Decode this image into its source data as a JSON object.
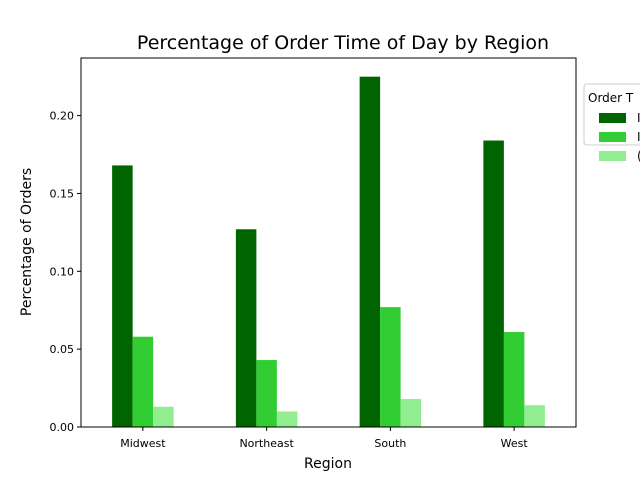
{
  "chart_data": {
    "type": "bar",
    "title": "Percentage of Order Time of Day by Region",
    "xlabel": "Region",
    "ylabel": "Percentage of Orders",
    "categories": [
      "Midwest",
      "Northeast",
      "South",
      "West"
    ],
    "ylim": [
      0,
      0.237
    ],
    "yticks": [
      0.0,
      0.05,
      0.1,
      0.15,
      0.2
    ],
    "ytick_labels": [
      "0.00",
      "0.05",
      "0.10",
      "0.15",
      "0.20"
    ],
    "grid": false,
    "legend": {
      "title": "Order T",
      "placement": "outside-top-right",
      "entries": [
        "I",
        "I",
        "("
      ]
    },
    "series": [
      {
        "values": [
          0.168,
          0.127,
          0.225,
          0.184
        ],
        "color": "#006400"
      },
      {
        "values": [
          0.058,
          0.043,
          0.077,
          0.061
        ],
        "color": "#32CD32"
      },
      {
        "values": [
          0.013,
          0.01,
          0.018,
          0.014
        ],
        "color": "#90EE90"
      }
    ]
  }
}
